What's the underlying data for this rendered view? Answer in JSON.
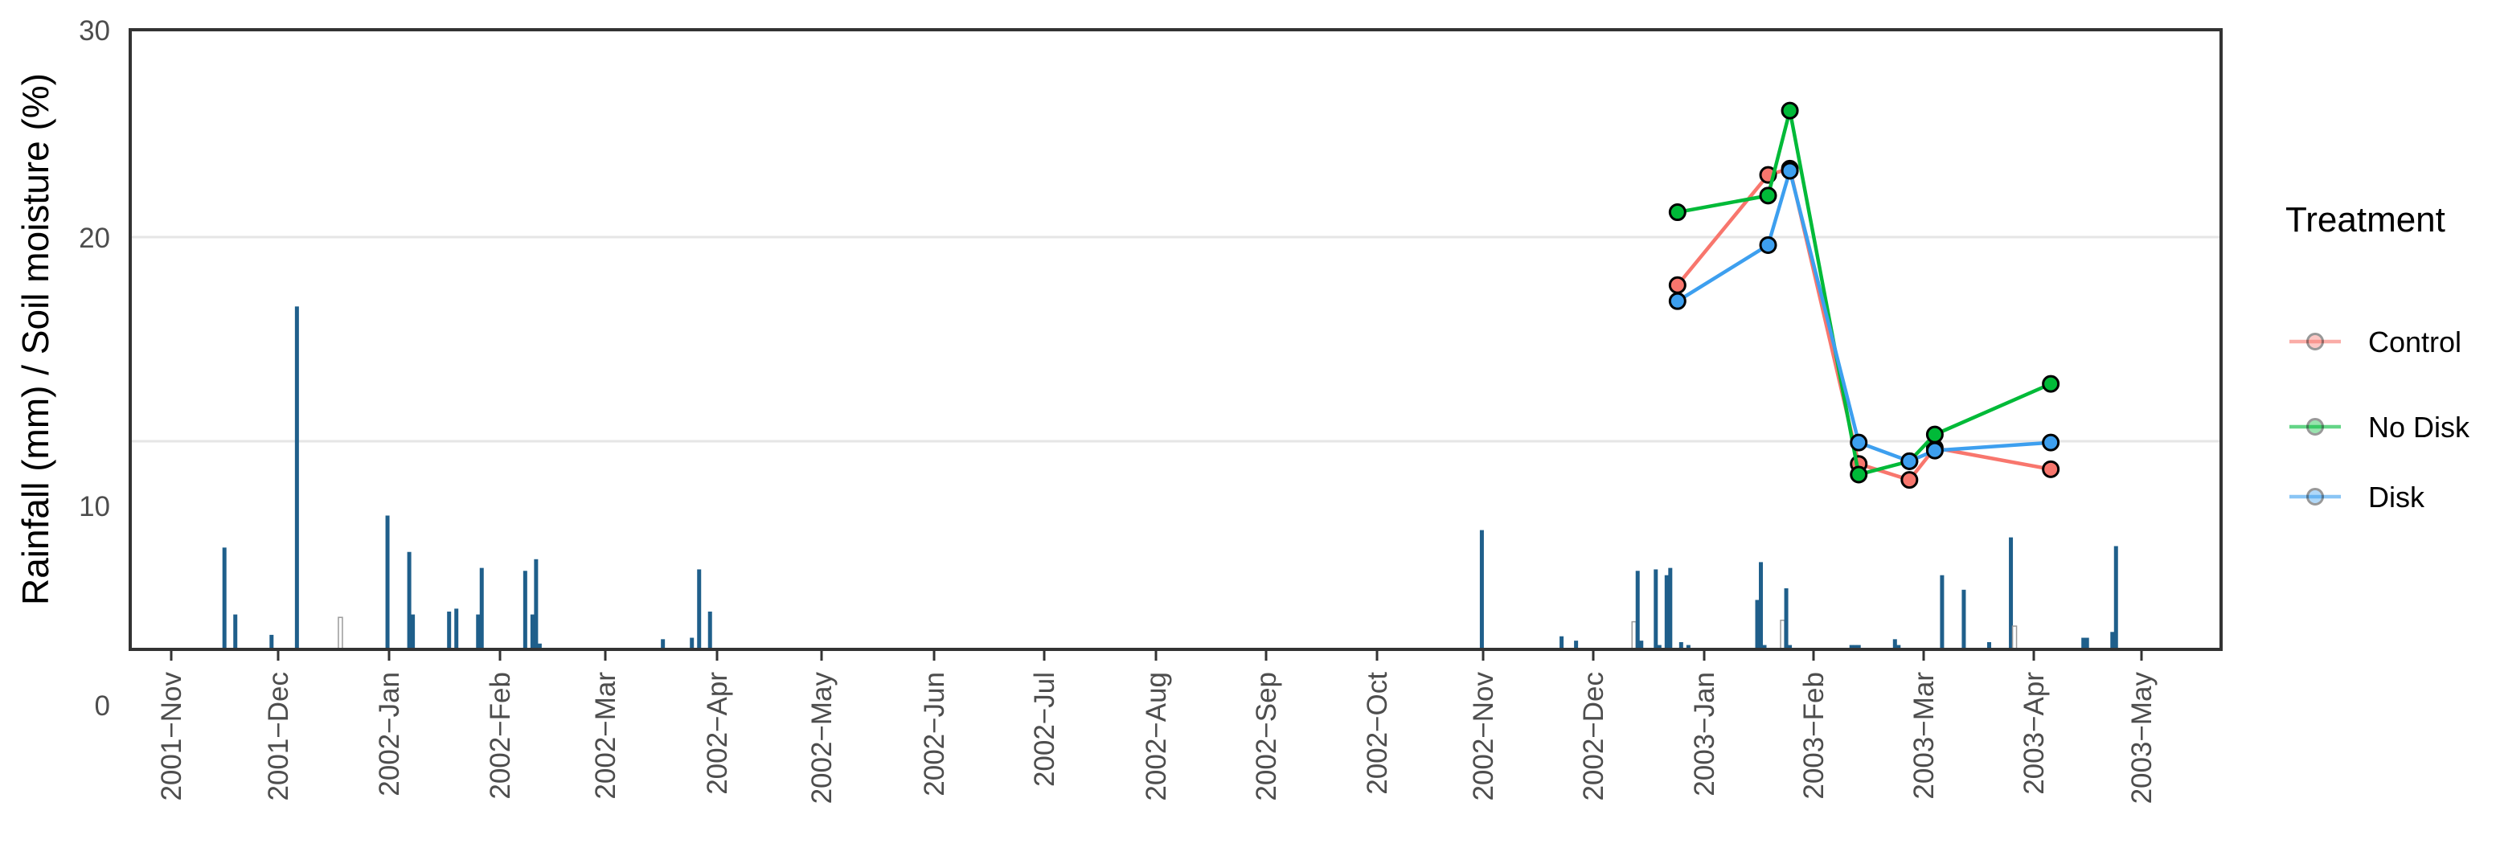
{
  "chart_data": {
    "type": "bar+line",
    "ylabel": "Rainfall (mm) / Soil moisture (%)",
    "y_tick_labels": [
      "0",
      "10",
      "20",
      "30"
    ],
    "x_tick_labels": [
      "2001−Nov",
      "2001−Dec",
      "2002−Jan",
      "2002−Feb",
      "2002−Mar",
      "2002−Apr",
      "2002−May",
      "2002−Jun",
      "2002−Jul",
      "2002−Aug",
      "2002−Sep",
      "2002−Oct",
      "2002−Nov",
      "2002−Dec",
      "2003−Jan",
      "2003−Feb",
      "2003−Mar",
      "2003−Apr",
      "2003−May"
    ],
    "x_range": [
      "2001-10-22",
      "2003-05-22"
    ],
    "legend": {
      "title": "Treatment",
      "position": "right"
    },
    "rainfall": [
      {
        "date": "2001-11-17",
        "value": 7.0
      },
      {
        "date": "2001-11-20",
        "value": 2.4
      },
      {
        "date": "2001-11-30",
        "value": 1.0
      },
      {
        "date": "2001-12-07",
        "value": 17.4
      },
      {
        "date": "2001-12-19",
        "value": 2.2,
        "open": true
      },
      {
        "date": "2002-01-01",
        "value": 9.2
      },
      {
        "date": "2002-01-07",
        "value": 6.7
      },
      {
        "date": "2002-01-08",
        "value": 2.4
      },
      {
        "date": "2002-01-18",
        "value": 2.6
      },
      {
        "date": "2002-01-20",
        "value": 2.8
      },
      {
        "date": "2002-01-26",
        "value": 2.4
      },
      {
        "date": "2002-01-27",
        "value": 5.6
      },
      {
        "date": "2002-02-08",
        "value": 5.4
      },
      {
        "date": "2002-02-10",
        "value": 2.4
      },
      {
        "date": "2002-02-11",
        "value": 6.2
      },
      {
        "date": "2002-02-12",
        "value": 0.4
      },
      {
        "date": "2002-03-18",
        "value": 0.7
      },
      {
        "date": "2002-03-26",
        "value": 0.8
      },
      {
        "date": "2002-03-28",
        "value": 5.5
      },
      {
        "date": "2002-03-31",
        "value": 2.6
      },
      {
        "date": "2002-10-30",
        "value": 8.2
      },
      {
        "date": "2002-11-21",
        "value": 0.9
      },
      {
        "date": "2002-11-25",
        "value": 0.6
      },
      {
        "date": "2002-12-11",
        "value": 1.9,
        "open": true
      },
      {
        "date": "2002-12-12",
        "value": 5.4
      },
      {
        "date": "2002-12-13",
        "value": 0.6
      },
      {
        "date": "2002-12-17",
        "value": 5.5
      },
      {
        "date": "2002-12-18",
        "value": 0.3
      },
      {
        "date": "2002-12-20",
        "value": 5.1
      },
      {
        "date": "2002-12-21",
        "value": 5.6
      },
      {
        "date": "2002-12-24",
        "value": 0.5
      },
      {
        "date": "2002-12-26",
        "value": 0.3
      },
      {
        "date": "2003-01-14",
        "value": 3.4
      },
      {
        "date": "2003-01-15",
        "value": 6.0
      },
      {
        "date": "2003-01-16",
        "value": 0.3
      },
      {
        "date": "2003-01-21",
        "value": 2.0,
        "open": true
      },
      {
        "date": "2003-01-22",
        "value": 4.2
      },
      {
        "date": "2003-01-23",
        "value": 0.3
      },
      {
        "date": "2003-02-09",
        "value": 0.3
      },
      {
        "date": "2003-02-10",
        "value": 0.3
      },
      {
        "date": "2003-02-11",
        "value": 0.3
      },
      {
        "date": "2003-02-21",
        "value": 0.7
      },
      {
        "date": "2003-02-22",
        "value": 0.3
      },
      {
        "date": "2003-03-06",
        "value": 5.1
      },
      {
        "date": "2003-03-12",
        "value": 4.1
      },
      {
        "date": "2003-03-19",
        "value": 0.5
      },
      {
        "date": "2003-03-25",
        "value": 7.7
      },
      {
        "date": "2003-03-26",
        "value": 1.6,
        "open": true
      },
      {
        "date": "2003-04-14",
        "value": 0.8
      },
      {
        "date": "2003-04-15",
        "value": 0.8
      },
      {
        "date": "2003-04-22",
        "value": 1.2
      },
      {
        "date": "2003-04-23",
        "value": 7.1
      }
    ],
    "series": [
      {
        "name": "Control",
        "color": "#f8766d",
        "points": [
          {
            "date": "2002-12-23",
            "value": 18.2
          },
          {
            "date": "2003-01-17",
            "value": 23.0
          },
          {
            "date": "2003-01-23",
            "value": 23.3
          },
          {
            "date": "2003-02-11",
            "value": 11.5
          },
          {
            "date": "2003-02-25",
            "value": 10.9
          },
          {
            "date": "2003-03-04",
            "value": 12.1
          },
          {
            "date": "2003-04-05",
            "value": 11.3
          }
        ]
      },
      {
        "name": "No Disk",
        "color": "#00ba38",
        "points": [
          {
            "date": "2002-12-23",
            "value": 21.2
          },
          {
            "date": "2003-01-17",
            "value": 22.0
          },
          {
            "date": "2003-01-23",
            "value": 26.1
          },
          {
            "date": "2003-02-11",
            "value": 11.1
          },
          {
            "date": "2003-02-25",
            "value": 11.6
          },
          {
            "date": "2003-03-04",
            "value": 12.6
          },
          {
            "date": "2003-04-05",
            "value": 14.5
          }
        ]
      },
      {
        "name": "Disk",
        "color": "#3d9fef",
        "points": [
          {
            "date": "2002-12-23",
            "value": 17.6
          },
          {
            "date": "2003-01-17",
            "value": 19.7
          },
          {
            "date": "2003-01-23",
            "value": 23.2
          },
          {
            "date": "2003-02-11",
            "value": 12.3
          },
          {
            "date": "2003-02-25",
            "value": 11.6
          },
          {
            "date": "2003-03-04",
            "value": 12.0
          },
          {
            "date": "2003-04-05",
            "value": 12.3
          }
        ]
      }
    ]
  }
}
